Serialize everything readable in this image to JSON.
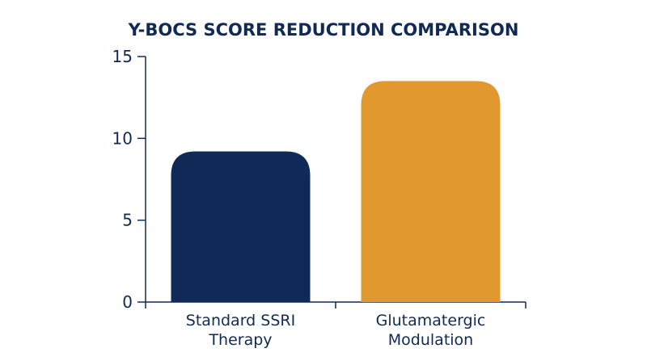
{
  "chart_data": {
    "type": "bar",
    "title": "Y-BOCS SCORE REDUCTION COMPARISON",
    "xlabel": "",
    "ylabel": "",
    "categories": [
      [
        "Standard SSRI",
        "Therapy"
      ],
      [
        "Glutamatergic",
        "Modulation"
      ]
    ],
    "values": [
      9.2,
      13.5
    ],
    "ylim": [
      0,
      15
    ],
    "yticks": [
      0,
      5,
      10,
      15
    ],
    "grid": false,
    "legend": "none",
    "colors": [
      "#0f2a56",
      "#e0982f"
    ],
    "axis_color": "#102a55",
    "text_color": "#102a55"
  }
}
